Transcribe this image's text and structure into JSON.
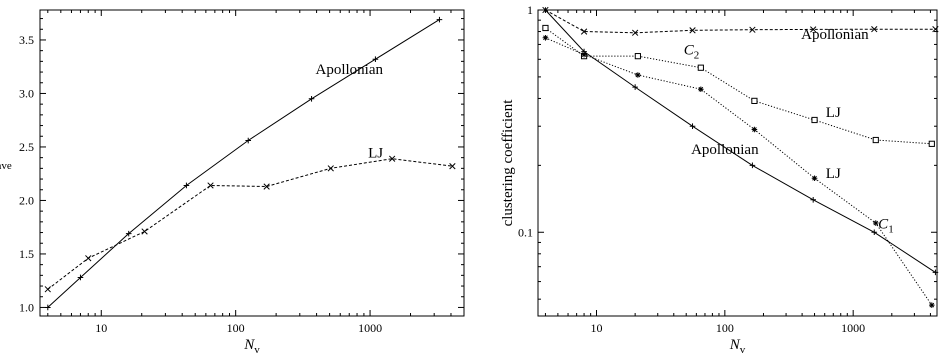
{
  "chart_data": [
    {
      "type": "line",
      "xscale": "log",
      "xlabel_main": "N",
      "xlabel_sub": "v",
      "ylabel_main": "l",
      "ylabel_sub": "ave",
      "xlim": [
        3.5,
        5000
      ],
      "ylim": [
        0.92,
        3.78
      ],
      "xticks": [
        10,
        100,
        1000
      ],
      "yticks": [
        1.0,
        1.5,
        2.0,
        2.5,
        3.0,
        3.5
      ],
      "series": [
        {
          "name": "Apollonian",
          "style": "solid",
          "marker": "plus",
          "x": [
            4,
            7,
            16,
            43,
            124,
            367,
            1096,
            3283
          ],
          "y": [
            1.0,
            1.28,
            1.69,
            2.14,
            2.56,
            2.95,
            3.32,
            3.69
          ]
        },
        {
          "name": "LJ",
          "style": "dashed",
          "marker": "x",
          "x": [
            4,
            8,
            21,
            65,
            170,
            510,
            1460,
            4100
          ],
          "y": [
            1.17,
            1.46,
            1.71,
            2.14,
            2.13,
            2.3,
            2.39,
            2.32
          ]
        }
      ],
      "annotations": [
        {
          "text": "Apollonian",
          "x": 700,
          "y": 3.18
        },
        {
          "text": "LJ",
          "x": 1100,
          "y": 2.4
        }
      ]
    },
    {
      "type": "line",
      "xscale": "log",
      "yscale": "log",
      "xlabel_main": "N",
      "xlabel_sub": "v",
      "ylabel": "clustering coefficient",
      "xlim": [
        3.5,
        4500
      ],
      "ylim": [
        0.042,
        1.0
      ],
      "xticks": [
        10,
        100,
        1000
      ],
      "yticks": [
        0.1,
        1
      ],
      "ytick_labels": [
        "0.1",
        "1"
      ],
      "series": [
        {
          "name": "Apollonian C2",
          "style": "dashed",
          "marker": "x",
          "x": [
            4,
            8,
            20,
            56,
            164,
            488,
            1460,
            4375
          ],
          "y": [
            1.0,
            0.8,
            0.79,
            0.81,
            0.815,
            0.818,
            0.82,
            0.82
          ]
        },
        {
          "name": "Apollonian C1",
          "style": "solid",
          "marker": "plus",
          "x": [
            4,
            8,
            20,
            56,
            164,
            488,
            1460,
            4375
          ],
          "y": [
            1.0,
            0.65,
            0.45,
            0.3,
            0.2,
            0.14,
            0.1,
            0.066
          ]
        },
        {
          "name": "LJ C2",
          "style": "dotted",
          "marker": "square",
          "x": [
            4,
            8,
            21,
            65,
            170,
            500,
            1500,
            4100
          ],
          "y": [
            0.83,
            0.62,
            0.62,
            0.55,
            0.39,
            0.32,
            0.26,
            0.25
          ]
        },
        {
          "name": "LJ C1",
          "style": "dotted",
          "marker": "asterisk",
          "x": [
            4,
            8,
            21,
            65,
            170,
            500,
            1500,
            4100
          ],
          "y": [
            0.75,
            0.63,
            0.51,
            0.44,
            0.29,
            0.175,
            0.11,
            0.047
          ]
        }
      ],
      "annotations": [
        {
          "text": "Apollonian",
          "x": 720,
          "y": 0.74
        },
        {
          "text": "C",
          "sub": "2",
          "x": 55,
          "y": 0.63
        },
        {
          "text": "LJ",
          "x": 700,
          "y": 0.33
        },
        {
          "text": "Apollonian",
          "x": 100,
          "y": 0.225
        },
        {
          "text": "LJ",
          "x": 700,
          "y": 0.175
        },
        {
          "text": "C",
          "sub": "1",
          "x": 1800,
          "y": 0.104
        }
      ]
    }
  ]
}
